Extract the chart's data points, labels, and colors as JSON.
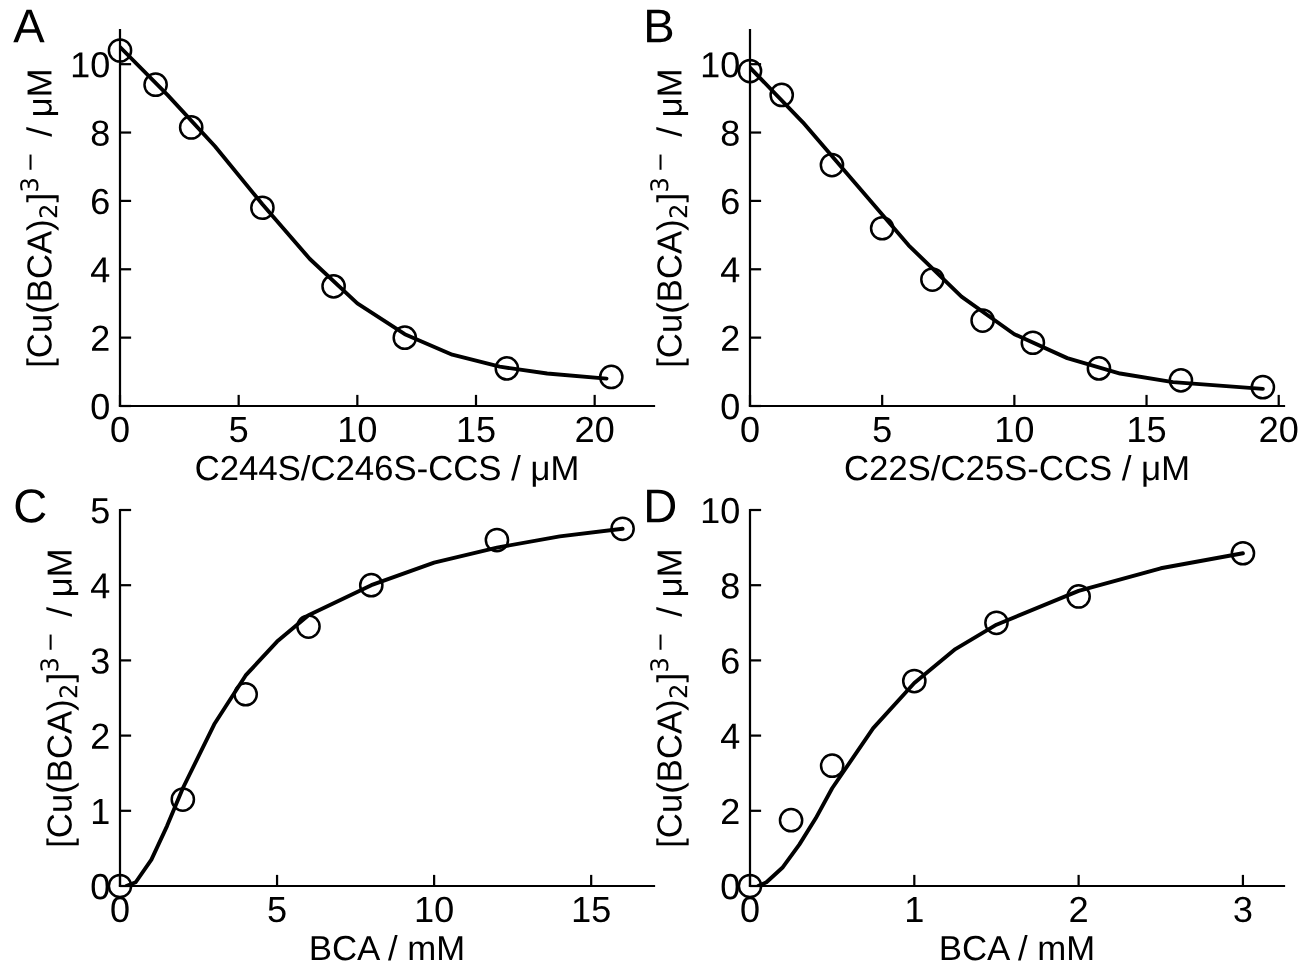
{
  "chart_data": [
    {
      "type": "scatter",
      "title": "A",
      "xlabel": "C244S/C246S-CCS / μM",
      "ylabel": "[Cu(BCA)$_{2}$]$^{3−}$ / μM",
      "xlim": [
        0,
        22.5
      ],
      "ylim": [
        0,
        11
      ],
      "xticks": [
        0,
        5,
        10,
        15,
        20
      ],
      "yticks": [
        0,
        2,
        4,
        6,
        8,
        10
      ],
      "grid": false,
      "legend": false,
      "series": [
        {
          "marker": "circle",
          "color": "#000000",
          "x": [
            0,
            1.5,
            3,
            6,
            9,
            12,
            16.3,
            20.7
          ],
          "values": [
            10.4,
            9.4,
            8.15,
            5.8,
            3.5,
            2.0,
            1.1,
            0.85
          ]
        },
        {
          "type": "line",
          "color": "#000000",
          "x": [
            0,
            2,
            4,
            6,
            8,
            10,
            12,
            14,
            16,
            18,
            20.5
          ],
          "values": [
            10.5,
            9.1,
            7.6,
            5.9,
            4.3,
            3.0,
            2.1,
            1.5,
            1.15,
            0.95,
            0.8
          ]
        }
      ]
    },
    {
      "type": "scatter",
      "title": "B",
      "xlabel": "C22S/C25S-CCS / μM",
      "ylabel": "[Cu(BCA)$_{2}$]$^{3−}$ / μM",
      "xlim": [
        0,
        20.2
      ],
      "ylim": [
        0,
        11
      ],
      "xticks": [
        0,
        5,
        10,
        15,
        20
      ],
      "yticks": [
        0,
        2,
        4,
        6,
        8,
        10
      ],
      "grid": false,
      "legend": false,
      "series": [
        {
          "marker": "circle",
          "color": "#000000",
          "x": [
            0,
            1.2,
            3.1,
            5,
            6.9,
            8.8,
            10.7,
            13.2,
            16.3,
            19.4
          ],
          "values": [
            9.8,
            9.1,
            7.05,
            5.2,
            3.7,
            2.5,
            1.85,
            1.1,
            0.75,
            0.55
          ]
        },
        {
          "type": "line",
          "color": "#000000",
          "x": [
            0,
            2,
            4,
            6,
            8,
            10,
            12,
            14,
            16,
            19.4
          ],
          "values": [
            9.9,
            8.3,
            6.5,
            4.7,
            3.2,
            2.1,
            1.4,
            0.95,
            0.7,
            0.5
          ]
        }
      ]
    },
    {
      "type": "scatter",
      "title": "C",
      "xlabel": "BCA / mM",
      "ylabel": "[Cu(BCA)$_{2}$]$^{3−}$ / μM",
      "xlim": [
        0,
        17
      ],
      "ylim": [
        0,
        5
      ],
      "xticks": [
        0,
        5,
        10,
        15
      ],
      "yticks": [
        0,
        1,
        2,
        3,
        4,
        5
      ],
      "grid": false,
      "legend": false,
      "series": [
        {
          "marker": "circle",
          "color": "#000000",
          "x": [
            0,
            2,
            4,
            6,
            8,
            12,
            16
          ],
          "values": [
            0,
            1.15,
            2.55,
            3.45,
            4.0,
            4.6,
            4.75
          ]
        },
        {
          "type": "line",
          "color": "#000000",
          "x": [
            0.2,
            0.5,
            1,
            1.5,
            2,
            3,
            4,
            5,
            6,
            8,
            10,
            12,
            14,
            16
          ],
          "values": [
            0,
            0.05,
            0.35,
            0.8,
            1.3,
            2.15,
            2.8,
            3.25,
            3.6,
            4.0,
            4.3,
            4.5,
            4.65,
            4.75
          ]
        }
      ]
    },
    {
      "type": "scatter",
      "title": "D",
      "xlabel": "BCA / mM",
      "ylabel": "[Cu(BCA)$_{2}$]$^{3−}$ / μM",
      "xlim": [
        0,
        3.25
      ],
      "ylim": [
        0,
        10
      ],
      "xticks": [
        0,
        1,
        2,
        3
      ],
      "yticks": [
        0,
        2,
        4,
        6,
        8,
        10
      ],
      "grid": false,
      "legend": false,
      "series": [
        {
          "marker": "circle",
          "color": "#000000",
          "x": [
            0,
            0.25,
            0.5,
            1,
            1.5,
            2,
            3
          ],
          "values": [
            0,
            1.75,
            3.2,
            5.45,
            7.0,
            7.7,
            8.85
          ]
        },
        {
          "type": "line",
          "color": "#000000",
          "x": [
            0.05,
            0.1,
            0.2,
            0.3,
            0.4,
            0.5,
            0.75,
            1,
            1.25,
            1.5,
            2,
            2.5,
            3
          ],
          "values": [
            0,
            0.1,
            0.5,
            1.1,
            1.8,
            2.6,
            4.2,
            5.4,
            6.3,
            6.95,
            7.85,
            8.45,
            8.85
          ]
        }
      ]
    }
  ]
}
